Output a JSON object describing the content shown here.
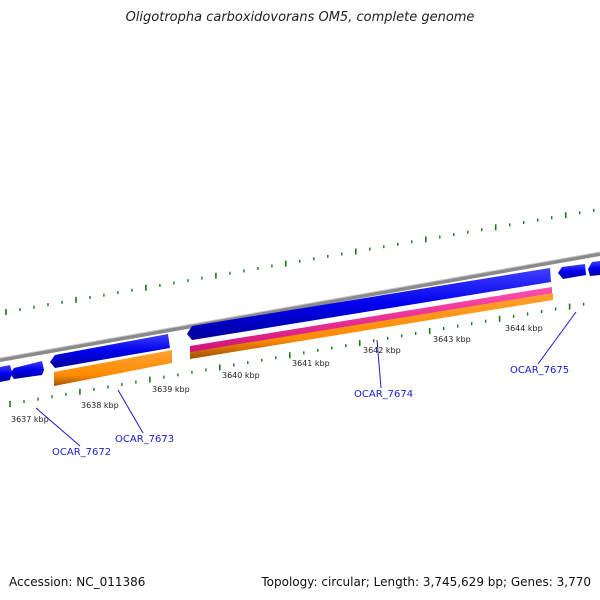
{
  "title": "Oligotropha carboxidovorans OM5, complete genome",
  "accession": "Accession: NC_011386",
  "stats": "Topology: circular; Length: 3,745,629 bp; Genes: 3,770",
  "ruler": {
    "tick_labels": [
      "3637 kbp",
      "3638 kbp",
      "3639 kbp",
      "3640 kbp",
      "3641 kbp",
      "3642 kbp",
      "3643 kbp",
      "3644 kbp"
    ]
  },
  "genes": [
    {
      "id": "OCAR_7672"
    },
    {
      "id": "OCAR_7673"
    },
    {
      "id": "OCAR_7674"
    },
    {
      "id": "OCAR_7675"
    }
  ],
  "colors": {
    "cds_forward": "#0000ee",
    "cds_reverse": "#0000ee",
    "rRNA_orange": "#ff8c00",
    "pink": "#ff1493",
    "backbone": "#808080",
    "ticks": "#1a7a1a",
    "label": "#1a1ac8"
  }
}
